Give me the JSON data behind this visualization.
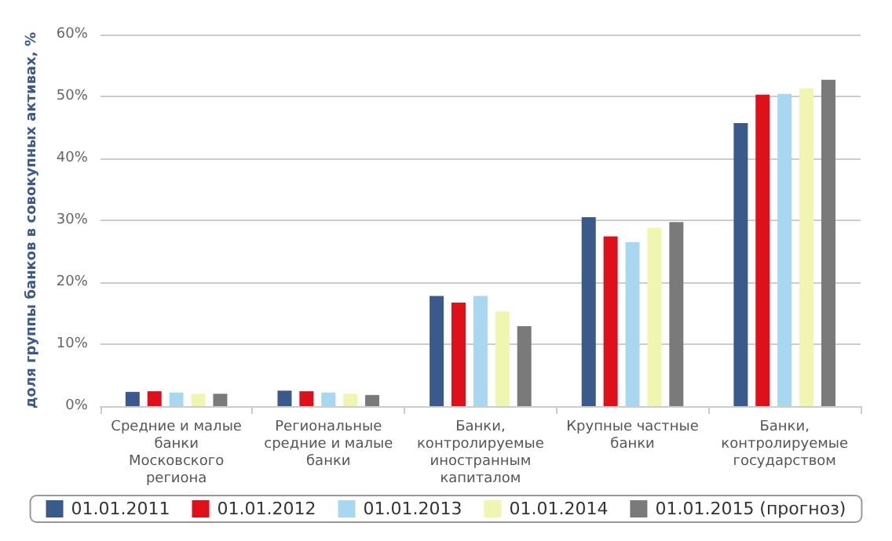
{
  "chart_data": {
    "type": "bar",
    "ylabel": "доля группы банков в совокупных активах, %",
    "categories": [
      "Средние и малые\nбанки\nМосковского\nрегиона",
      "Региональные\nсредние и малые\nбанки",
      "Банки,\nконтролируемые\nиностранным\nкапиталом",
      "Крупные частные\nбанки",
      "Банки,\nконтролируемые\nгосударством"
    ],
    "series": [
      {
        "name": "01.01.2011",
        "color": "#3a5a8c",
        "values": [
          2.3,
          2.5,
          17.8,
          30.5,
          45.7
        ]
      },
      {
        "name": "01.01.2012",
        "color": "#e0101a",
        "values": [
          2.4,
          2.4,
          16.7,
          27.4,
          50.3
        ]
      },
      {
        "name": "01.01.2013",
        "color": "#a8d8f0",
        "values": [
          2.2,
          2.2,
          17.8,
          26.5,
          50.4
        ]
      },
      {
        "name": "01.01.2014",
        "color": "#f0f5b0",
        "values": [
          2.0,
          2.0,
          15.3,
          28.8,
          51.3
        ]
      },
      {
        "name": "01.01.2015 (прогноз)",
        "color": "#7a7a7a",
        "values": [
          2.0,
          1.8,
          12.9,
          29.7,
          52.7
        ]
      }
    ],
    "ylim": [
      0,
      60
    ],
    "yticks": [
      {
        "value": 0,
        "label": "0%"
      },
      {
        "value": 10,
        "label": "10%"
      },
      {
        "value": 20,
        "label": "20%"
      },
      {
        "value": 30,
        "label": "30%"
      },
      {
        "value": 40,
        "label": "40%"
      },
      {
        "value": 50,
        "label": "50%"
      },
      {
        "value": 60,
        "label": "60%"
      }
    ],
    "grid": "y",
    "legend": "bottom"
  }
}
